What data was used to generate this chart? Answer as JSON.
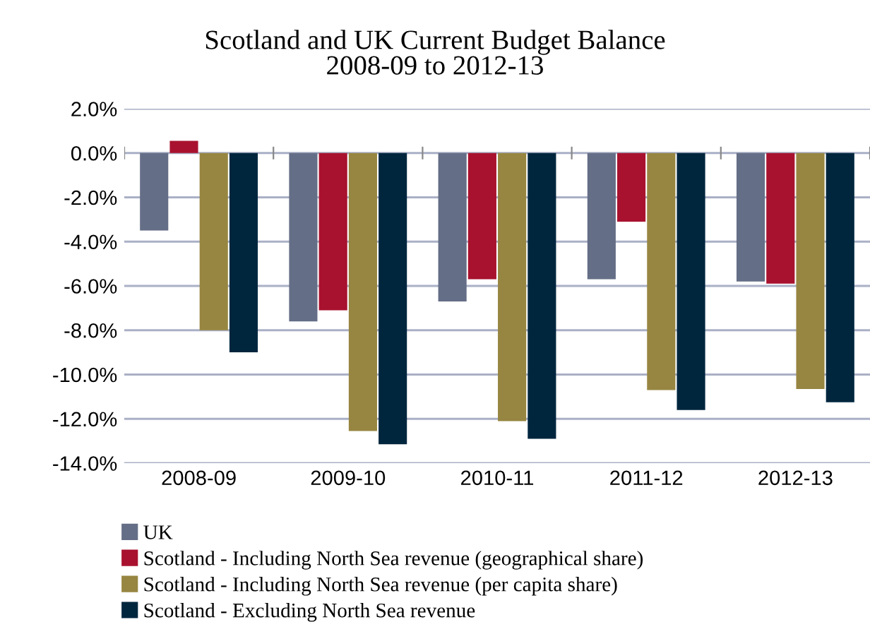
{
  "chart_data": {
    "type": "bar",
    "title": "Scotland and UK Current Budget Balance",
    "subtitle": "2008-09 to 2012-13",
    "categories": [
      "2008-09",
      "2009-10",
      "2010-11",
      "2011-12",
      "2012-13"
    ],
    "series": [
      {
        "name": "UK",
        "color": "#646e86",
        "values": [
          -3.5,
          -7.6,
          -6.7,
          -5.7,
          -5.8
        ]
      },
      {
        "name": "Scotland - Including North Sea revenue (geographical share)",
        "color": "#a8122e",
        "values": [
          0.55,
          -7.1,
          -5.7,
          -3.1,
          -5.9
        ]
      },
      {
        "name": "Scotland - Including North Sea revenue (per capita share)",
        "color": "#978641",
        "values": [
          -8.0,
          -12.55,
          -12.1,
          -10.7,
          -10.65
        ]
      },
      {
        "name": "Scotland - Excluding North Sea revenue",
        "color": "#00263e",
        "values": [
          -9.0,
          -13.15,
          -12.9,
          -11.6,
          -11.25
        ]
      }
    ],
    "ylim": [
      -14,
      2
    ],
    "yticks": [
      {
        "value": -14,
        "label": "-14.0%"
      },
      {
        "value": -12,
        "label": "-12.0%"
      },
      {
        "value": -10,
        "label": "-10.0%"
      },
      {
        "value": -8,
        "label": "-8.0%"
      },
      {
        "value": -6,
        "label": "-6.0%"
      },
      {
        "value": -4,
        "label": "-4.0%"
      },
      {
        "value": -2,
        "label": "-2.0%"
      },
      {
        "value": 0,
        "label": "0.0%"
      },
      {
        "value": 2,
        "label": "2.0%"
      }
    ],
    "grid": "y",
    "legend": "bottom left"
  }
}
